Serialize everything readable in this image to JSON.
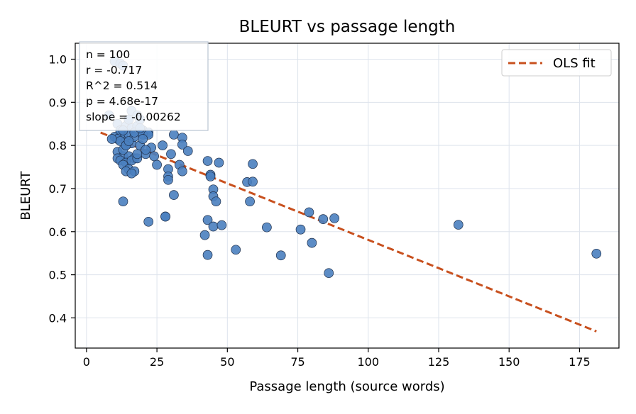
{
  "chart_data": {
    "type": "scatter",
    "title": "BLEURT vs passage length",
    "xlabel": "Passage length (source words)",
    "ylabel": "BLEURT",
    "xlim": [
      -4,
      189
    ],
    "ylim": [
      0.33,
      1.037
    ],
    "xticks": [
      0,
      25,
      50,
      75,
      100,
      125,
      150,
      175
    ],
    "yticks": [
      0.4,
      0.5,
      0.6,
      0.7,
      0.8,
      0.9,
      1.0
    ],
    "xtick_labels": [
      "0",
      "25",
      "50",
      "75",
      "100",
      "125",
      "150",
      "175"
    ],
    "ytick_labels": [
      "0.4",
      "0.5",
      "0.6",
      "0.7",
      "0.8",
      "0.9",
      "1.0"
    ],
    "grid": true,
    "legend_position": "top-right",
    "colors": {
      "points": "#4a7fbf",
      "point_edge": "#1f2f4a",
      "fit": "#c8501e",
      "grid": "#dde3ec"
    },
    "series": [
      {
        "kind": "points",
        "x": [
          10,
          12,
          13,
          15,
          8,
          11,
          14,
          16,
          18,
          20,
          22,
          12,
          13,
          10,
          11,
          14,
          16,
          19,
          23,
          15,
          17,
          12,
          14,
          9,
          11,
          13,
          15,
          17,
          21,
          24,
          11,
          12,
          14,
          16,
          18,
          13,
          15,
          17,
          14,
          16,
          13,
          20,
          22,
          25,
          27,
          29,
          30,
          31,
          33,
          34,
          34,
          36,
          34,
          31,
          28,
          29,
          29,
          22,
          28,
          43,
          44,
          44,
          45,
          45,
          46,
          43,
          45,
          48,
          42,
          43,
          47,
          57,
          59,
          58,
          59,
          53,
          64,
          69,
          76,
          79,
          80,
          84,
          86,
          88,
          132,
          181,
          16,
          18,
          19,
          12,
          13,
          15,
          17,
          19,
          20,
          13,
          14,
          15,
          18,
          21
        ],
        "y": [
          0.995,
          0.99,
          0.985,
          0.86,
          0.87,
          0.85,
          0.845,
          0.84,
          0.845,
          0.835,
          0.83,
          0.83,
          0.825,
          0.82,
          0.815,
          0.81,
          0.805,
          0.8,
          0.795,
          0.825,
          0.82,
          0.81,
          0.8,
          0.815,
          0.785,
          0.775,
          0.775,
          0.77,
          0.78,
          0.775,
          0.77,
          0.765,
          0.76,
          0.765,
          0.77,
          0.755,
          0.745,
          0.74,
          0.74,
          0.735,
          0.67,
          0.825,
          0.825,
          0.755,
          0.8,
          0.745,
          0.78,
          0.825,
          0.755,
          0.818,
          0.802,
          0.787,
          0.74,
          0.685,
          0.635,
          0.728,
          0.72,
          0.623,
          0.635,
          0.764,
          0.732,
          0.728,
          0.698,
          0.682,
          0.67,
          0.627,
          0.612,
          0.615,
          0.592,
          0.546,
          0.76,
          0.715,
          0.757,
          0.67,
          0.716,
          0.558,
          0.61,
          0.545,
          0.605,
          0.645,
          0.574,
          0.629,
          0.504,
          0.631,
          0.616,
          0.549,
          0.88,
          0.87,
          0.86,
          0.835,
          0.835,
          0.86,
          0.83,
          0.84,
          0.815,
          0.79,
          0.8,
          0.81,
          0.78,
          0.79
        ]
      },
      {
        "kind": "line",
        "name": "OLS fit",
        "x": [
          5,
          181
        ],
        "y": [
          0.8298,
          0.3687
        ]
      }
    ],
    "annotation": [
      "n = 100",
      "r = -0.717",
      "R^2 = 0.514",
      "p = 4.68e-17",
      "slope = -0.00262"
    ]
  }
}
